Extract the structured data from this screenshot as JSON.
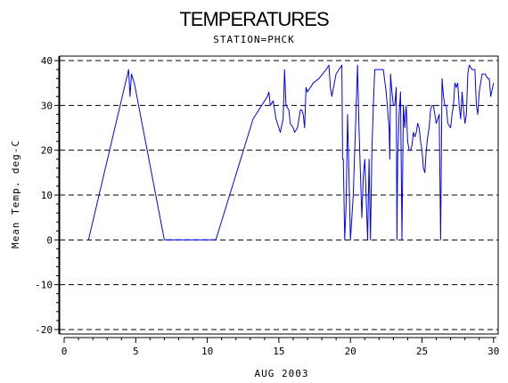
{
  "chart_data": {
    "type": "line",
    "title": "TEMPERATURES",
    "subtitle": "STATION=PHCK",
    "xlabel": "AUG 2003",
    "ylabel": "Mean Temp. deg-C",
    "xlim": [
      0,
      30.2
    ],
    "ylim": [
      -21,
      41
    ],
    "x_ticks": [
      0,
      5,
      10,
      15,
      20,
      25,
      30
    ],
    "y_ticks": [
      -20,
      -10,
      0,
      10,
      20,
      30,
      40
    ],
    "y_tick_labels": [
      "-20",
      "-10",
      "0",
      "10",
      "20",
      "30",
      "40"
    ],
    "grid": "horizontal dashed",
    "legend": "none",
    "line_color": "#0000ff",
    "series": [
      {
        "x": [
          1.7,
          4.5,
          4.6,
          4.7,
          4.8,
          4.9,
          7.0,
          10.6,
          13.2,
          13.6,
          14.0,
          14.2,
          14.3,
          14.4,
          14.6,
          14.8,
          15.0,
          15.1,
          15.3,
          15.4,
          15.5,
          15.7,
          15.8,
          16.0,
          16.1,
          16.3,
          16.5,
          16.6,
          16.7,
          16.8,
          16.9,
          17.0,
          17.2,
          17.4,
          17.8,
          18.3,
          18.5,
          18.6,
          18.7,
          19.0,
          19.4,
          19.45,
          19.5,
          19.6,
          19.7,
          19.8,
          20.0,
          20.2,
          20.5,
          20.6,
          20.7,
          20.8,
          20.9,
          21.0,
          21.2,
          21.3,
          21.4,
          21.5,
          21.6,
          21.7,
          21.8,
          21.9,
          22.0,
          22.3,
          22.5,
          22.7,
          22.75,
          22.8,
          22.9,
          23.0,
          23.1,
          23.2,
          23.25,
          23.3,
          23.4,
          23.5,
          23.6,
          23.7,
          23.8,
          23.9,
          24.0,
          24.1,
          24.2,
          24.3,
          24.4,
          24.5,
          24.6,
          24.7,
          24.8,
          24.9,
          25.0,
          25.1,
          25.2,
          25.3,
          25.4,
          25.5,
          25.6,
          25.7,
          25.8,
          25.9,
          26.0,
          26.1,
          26.2,
          26.3,
          26.4,
          26.5,
          26.6,
          26.7,
          26.8,
          27.0,
          27.1,
          27.2,
          27.3,
          27.4,
          27.5,
          27.6,
          27.7,
          27.8,
          27.9,
          28.0,
          28.1,
          28.2,
          28.3,
          28.5,
          28.6,
          28.7,
          28.8,
          28.9,
          29.0,
          29.2,
          29.4,
          29.6,
          29.7,
          29.8,
          30.0
        ],
        "y": [
          0,
          38,
          32,
          37,
          36,
          35,
          0,
          0,
          27,
          29,
          31,
          32,
          33,
          30,
          31,
          27,
          25,
          24,
          27,
          38,
          30,
          29,
          26,
          25,
          24,
          25,
          29,
          29,
          28,
          25,
          34,
          33,
          34,
          35,
          36,
          38,
          39,
          34,
          32,
          37,
          39,
          18,
          18,
          0,
          8,
          28,
          0,
          10,
          39,
          25,
          15,
          5,
          14,
          18,
          0,
          18,
          0,
          20,
          30,
          38,
          38,
          38,
          38,
          38,
          33,
          25,
          18,
          37,
          33,
          30,
          30,
          34,
          0,
          18,
          28,
          33,
          0,
          30,
          25,
          30,
          22,
          20,
          20,
          21,
          24,
          23,
          24,
          26,
          25,
          22,
          20,
          16,
          15,
          20,
          23,
          25,
          29,
          30,
          30,
          28,
          26,
          27,
          28,
          0,
          36,
          32,
          30,
          30,
          26,
          25,
          28,
          30,
          35,
          34,
          35,
          30,
          27,
          33,
          29,
          26,
          28,
          37,
          39,
          38,
          38,
          38,
          30,
          28,
          33,
          37,
          37,
          36,
          36,
          32,
          35
        ]
      }
    ]
  }
}
